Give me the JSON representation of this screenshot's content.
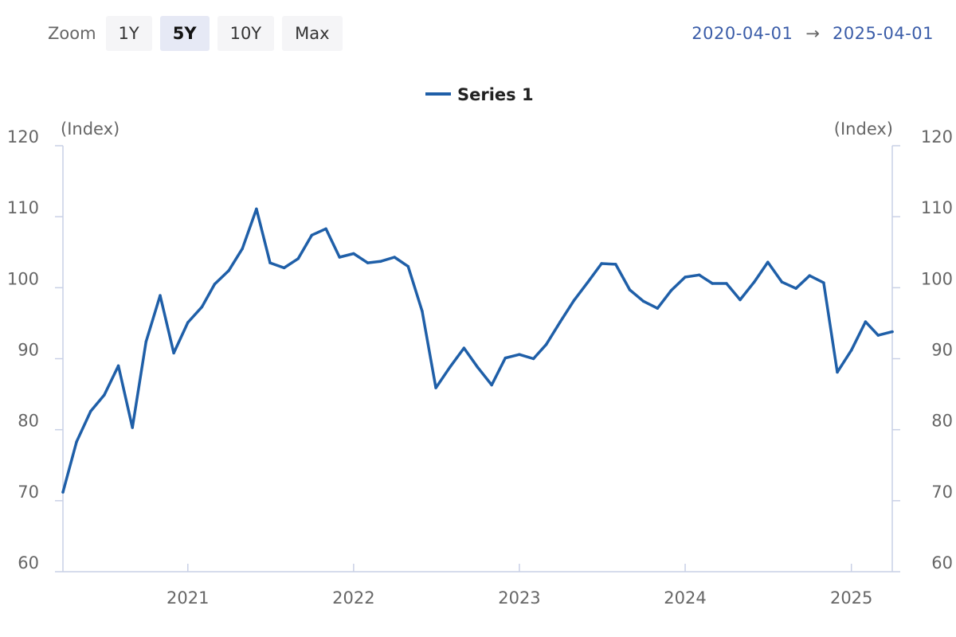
{
  "toolbar": {
    "zoom_label": "Zoom",
    "buttons": [
      {
        "label": "1Y",
        "active": false
      },
      {
        "label": "5Y",
        "active": true
      },
      {
        "label": "10Y",
        "active": false
      },
      {
        "label": "Max",
        "active": false
      }
    ]
  },
  "range": {
    "from": "2020-04-01",
    "arrow": "→",
    "to": "2025-04-01"
  },
  "chart_data": {
    "type": "line",
    "title": "",
    "xlabel": "",
    "ylabel": "(Index)",
    "ylabel_right": "(Index)",
    "ylim": [
      60,
      120
    ],
    "yticks": [
      60,
      70,
      80,
      90,
      100,
      110,
      120
    ],
    "xlim": [
      "2020-04-01",
      "2025-04-01"
    ],
    "xticks": [
      "2021",
      "2022",
      "2023",
      "2024",
      "2025"
    ],
    "grid": false,
    "legend": "top-center",
    "line_color": "#1f5fa8",
    "series": [
      {
        "name": "Series 1",
        "x": [
          "2020-04",
          "2020-05",
          "2020-06",
          "2020-07",
          "2020-08",
          "2020-09",
          "2020-10",
          "2020-11",
          "2020-12",
          "2021-01",
          "2021-02",
          "2021-03",
          "2021-04",
          "2021-05",
          "2021-06",
          "2021-07",
          "2021-08",
          "2021-09",
          "2021-10",
          "2021-11",
          "2021-12",
          "2022-01",
          "2022-02",
          "2022-03",
          "2022-04",
          "2022-05",
          "2022-06",
          "2022-07",
          "2022-08",
          "2022-09",
          "2022-10",
          "2022-11",
          "2022-12",
          "2023-01",
          "2023-02",
          "2023-03",
          "2023-04",
          "2023-05",
          "2023-06",
          "2023-07",
          "2023-08",
          "2023-09",
          "2023-10",
          "2023-11",
          "2023-12",
          "2024-01",
          "2024-02",
          "2024-03",
          "2024-04",
          "2024-05",
          "2024-06",
          "2024-07",
          "2024-08",
          "2024-09",
          "2024-10",
          "2024-11",
          "2024-12",
          "2025-01",
          "2025-02",
          "2025-03",
          "2025-04"
        ],
        "values": [
          71.2,
          78.3,
          82.6,
          84.9,
          89.0,
          80.3,
          92.4,
          98.9,
          90.8,
          95.1,
          97.3,
          100.5,
          102.4,
          105.5,
          111.1,
          103.5,
          102.8,
          104.1,
          107.4,
          108.3,
          104.3,
          104.8,
          103.5,
          103.7,
          104.3,
          103.0,
          96.7,
          85.9,
          88.8,
          91.5,
          88.8,
          86.3,
          90.1,
          90.6,
          90.0,
          92.0,
          95.2,
          98.2,
          100.8,
          103.4,
          103.3,
          99.7,
          98.1,
          97.1,
          99.6,
          101.5,
          101.8,
          100.6,
          100.6,
          98.3,
          100.8,
          103.6,
          100.8,
          99.9,
          101.7,
          100.7,
          88.1,
          91.2,
          95.2,
          93.3,
          93.8
        ]
      }
    ]
  }
}
